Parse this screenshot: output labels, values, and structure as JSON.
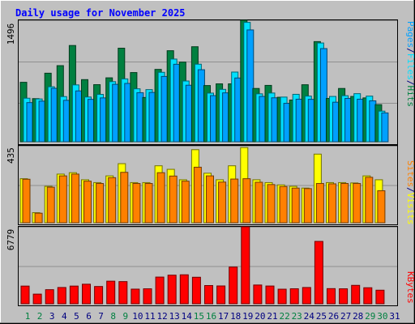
{
  "chart_data": [
    {
      "type": "bar",
      "title": "Daily usage for November 2025",
      "categories": [
        "1",
        "2",
        "3",
        "4",
        "5",
        "6",
        "7",
        "8",
        "9",
        "10",
        "11",
        "12",
        "13",
        "14",
        "15",
        "16",
        "17",
        "18",
        "19",
        "20",
        "21",
        "22",
        "23",
        "24",
        "25",
        "26",
        "27",
        "28",
        "29",
        "30",
        "31"
      ],
      "weekend_days": [
        "1",
        "2",
        "8",
        "9",
        "15",
        "16",
        "22",
        "23",
        "29",
        "30"
      ],
      "ymax_label": "1496",
      "ymax": 1496,
      "y_title": [
        "Pages",
        "/",
        "Files",
        "/",
        "Hits"
      ],
      "series": [
        {
          "name": "Hits",
          "color": "#008040",
          "values": [
            732,
            531,
            844,
            937,
            1185,
            765,
            703,
            787,
            1152,
            852,
            545,
            891,
            1121,
            981,
            1170,
            692,
            713,
            713,
            1496,
            656,
            694,
            548,
            514,
            702,
            1233,
            533,
            656,
            558,
            540,
            457,
            0
          ]
        },
        {
          "name": "Files",
          "color": "#00e0ff",
          "values": [
            536,
            527,
            677,
            556,
            700,
            551,
            583,
            740,
            774,
            652,
            642,
            855,
            1018,
            748,
            955,
            599,
            645,
            858,
            1470,
            590,
            600,
            550,
            584,
            562,
            1216,
            558,
            567,
            592,
            562,
            377,
            0
          ]
        },
        {
          "name": "Pages",
          "color": "#00a0ff",
          "values": [
            482,
            500,
            658,
            510,
            626,
            522,
            540,
            707,
            718,
            604,
            607,
            804,
            954,
            696,
            887,
            568,
            602,
            785,
            1377,
            558,
            541,
            473,
            524,
            522,
            1147,
            487,
            534,
            524,
            504,
            355,
            0
          ]
        }
      ]
    },
    {
      "type": "bar",
      "ymax_label": "435",
      "ymax": 435,
      "y_title": [
        "Sites",
        "/",
        "Visits"
      ],
      "series": [
        {
          "name": "Visits",
          "color": "#ffff00",
          "values": [
            249,
            57,
            206,
            275,
            283,
            243,
            227,
            265,
            334,
            227,
            227,
            322,
            302,
            243,
            413,
            280,
            243,
            322,
            425,
            243,
            227,
            214,
            206,
            196,
            388,
            227,
            227,
            225,
            265,
            243,
            0
          ]
        },
        {
          "name": "Sites",
          "color": "#ff8000",
          "values": [
            246,
            54,
            201,
            265,
            275,
            235,
            222,
            255,
            285,
            222,
            222,
            283,
            264,
            235,
            314,
            265,
            230,
            247,
            249,
            229,
            216,
            205,
            196,
            193,
            222,
            220,
            222,
            222,
            257,
            181,
            0
          ]
        }
      ]
    },
    {
      "type": "bar",
      "ymax_label": "6779",
      "ymax": 6779,
      "y_title": [
        "KBytes"
      ],
      "series": [
        {
          "name": "KBytes",
          "color": "#ff0000",
          "values": [
            1558,
            849,
            1240,
            1432,
            1558,
            1721,
            1521,
            1989,
            1952,
            1287,
            1318,
            2350,
            2519,
            2552,
            2335,
            1605,
            1569,
            3233,
            6779,
            1652,
            1563,
            1282,
            1321,
            1432,
            5492,
            1333,
            1318,
            1622,
            1411,
            1194,
            0
          ]
        }
      ]
    }
  ],
  "colors": {
    "background": "#c0c0c0",
    "title": "#0000ff",
    "weekday_label": "#000080",
    "weekend_label": "#008040",
    "slash": "#000080"
  }
}
